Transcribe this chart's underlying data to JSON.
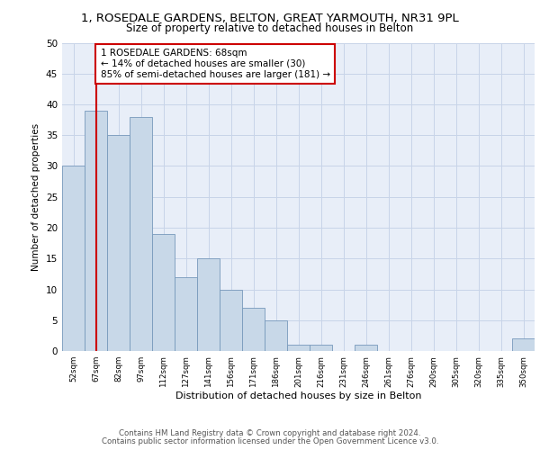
{
  "title1": "1, ROSEDALE GARDENS, BELTON, GREAT YARMOUTH, NR31 9PL",
  "title2": "Size of property relative to detached houses in Belton",
  "xlabel": "Distribution of detached houses by size in Belton",
  "ylabel": "Number of detached properties",
  "categories": [
    "52sqm",
    "67sqm",
    "82sqm",
    "97sqm",
    "112sqm",
    "127sqm",
    "141sqm",
    "156sqm",
    "171sqm",
    "186sqm",
    "201sqm",
    "216sqm",
    "231sqm",
    "246sqm",
    "261sqm",
    "276sqm",
    "290sqm",
    "305sqm",
    "320sqm",
    "335sqm",
    "350sqm"
  ],
  "values": [
    30,
    39,
    35,
    38,
    19,
    12,
    15,
    10,
    7,
    5,
    1,
    1,
    0,
    1,
    0,
    0,
    0,
    0,
    0,
    0,
    2
  ],
  "bar_color": "#c8d8e8",
  "bar_edge_color": "#7799bb",
  "vline_x": 1,
  "vline_color": "#cc0000",
  "annotation_text": "1 ROSEDALE GARDENS: 68sqm\n← 14% of detached houses are smaller (30)\n85% of semi-detached houses are larger (181) →",
  "annotation_box_color": "#ffffff",
  "annotation_box_edge": "#cc0000",
  "ylim": [
    0,
    50
  ],
  "yticks": [
    0,
    5,
    10,
    15,
    20,
    25,
    30,
    35,
    40,
    45,
    50
  ],
  "grid_color": "#c8d4e8",
  "background_color": "#e8eef8",
  "footer1": "Contains HM Land Registry data © Crown copyright and database right 2024.",
  "footer2": "Contains public sector information licensed under the Open Government Licence v3.0."
}
